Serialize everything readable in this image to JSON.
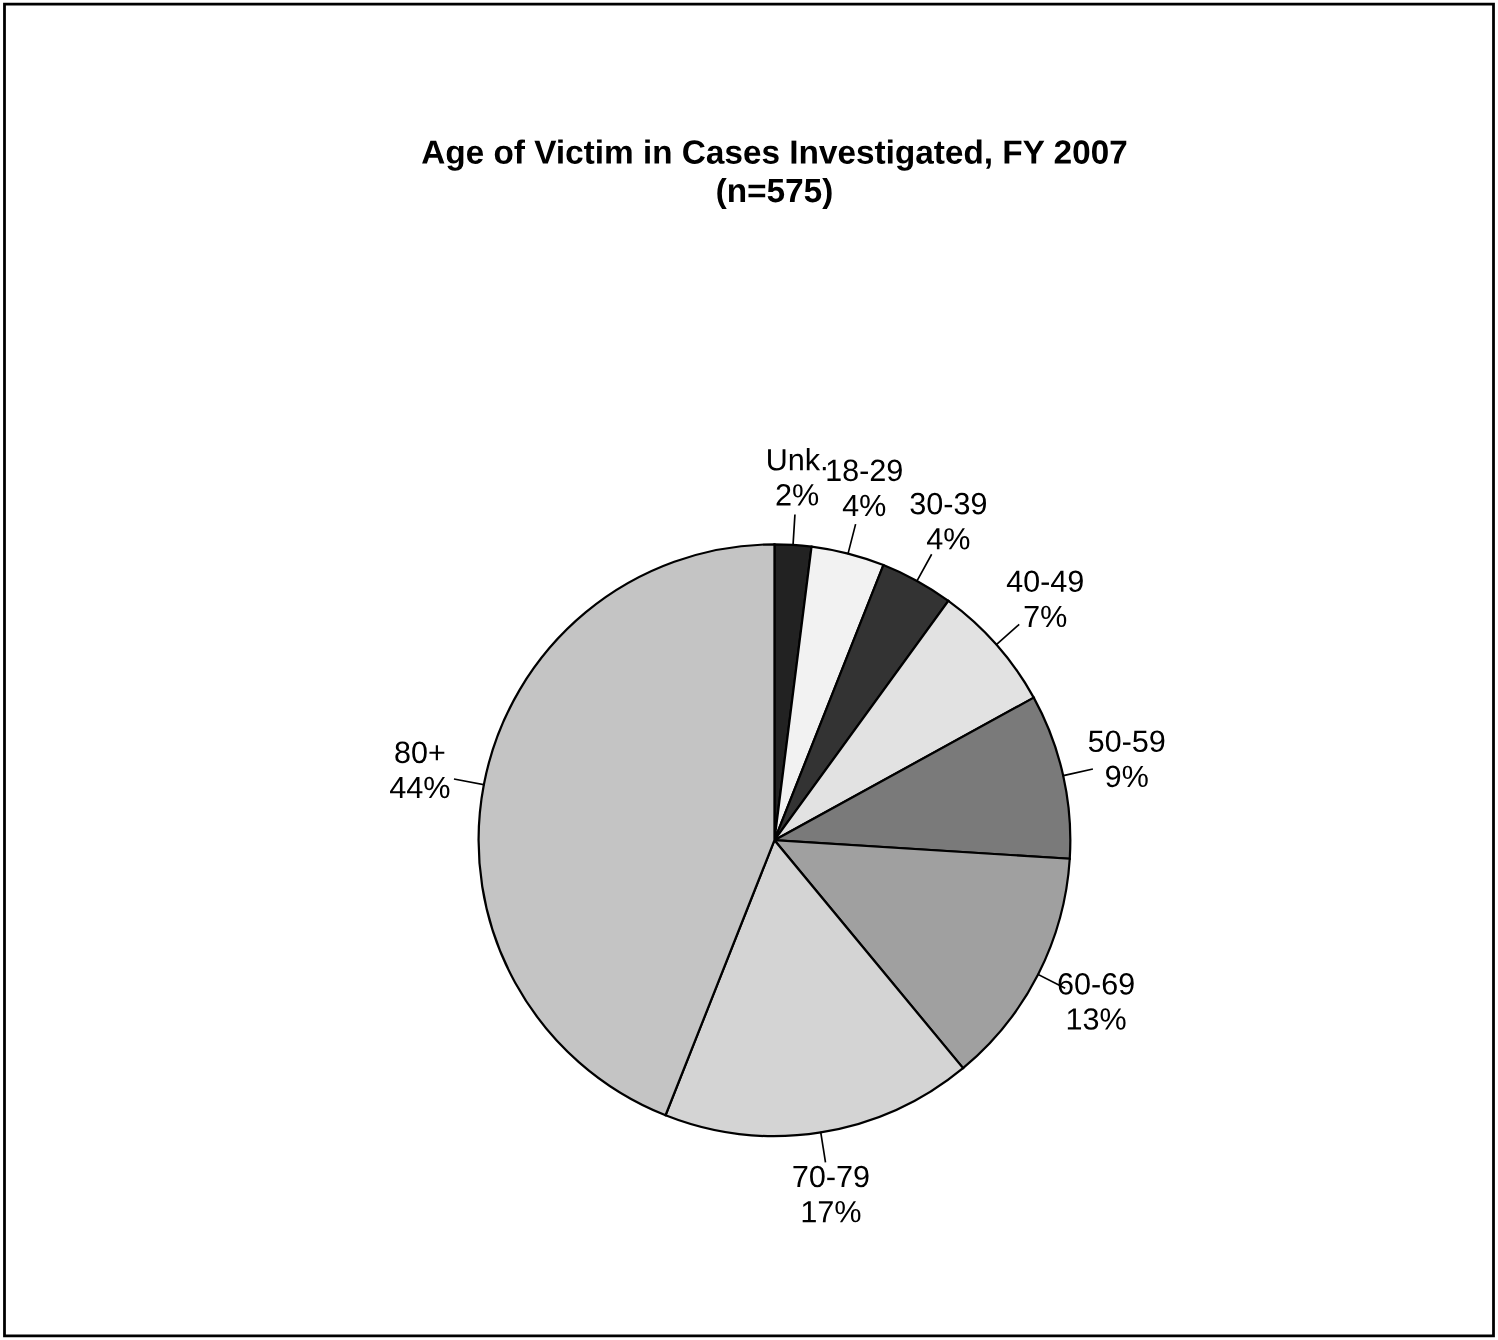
{
  "chart_data": {
    "type": "pie",
    "title": "Age of Victim in Cases Investigated, FY 2007\n(n=575)",
    "categories": [
      "Unk.",
      "18-29",
      "30-39",
      "40-49",
      "50-59",
      "60-69",
      "70-79",
      "80+"
    ],
    "values": [
      2,
      4,
      4,
      7,
      9,
      13,
      17,
      44
    ],
    "value_labels": [
      "2%",
      "4%",
      "4%",
      "7%",
      "9%",
      "13%",
      "17%",
      "44%"
    ],
    "colors": [
      "#222222",
      "#f2f2f2",
      "#333333",
      "#e2e2e2",
      "#7a7a7a",
      "#a0a0a0",
      "#d4d4d4",
      "#c4c4c4"
    ]
  }
}
